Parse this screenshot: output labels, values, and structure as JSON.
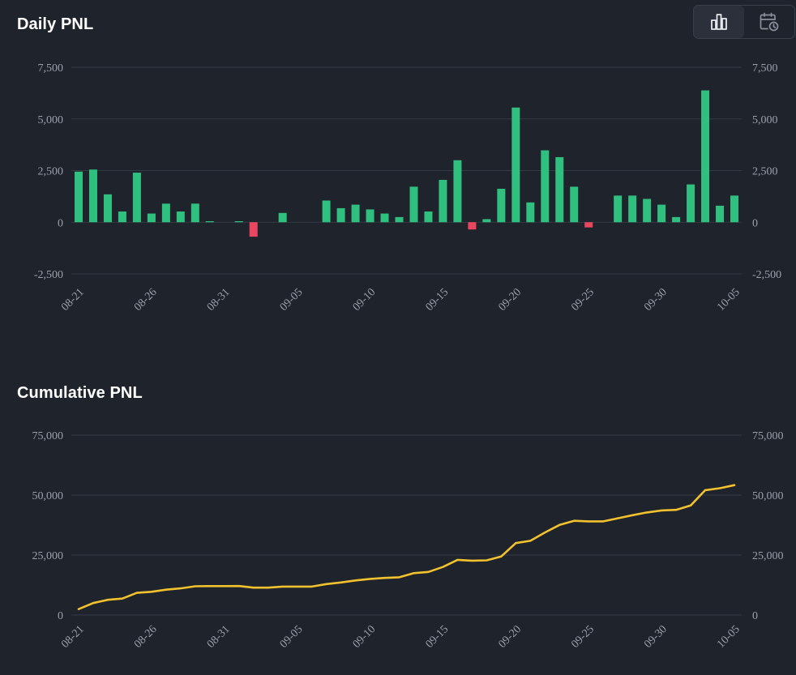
{
  "header": {
    "daily_title": "Daily PNL",
    "cumulative_title": "Cumulative PNL",
    "toggle_bar_icon": "bar-chart-icon",
    "toggle_calendar_icon": "calendar-clock-icon"
  },
  "colors": {
    "background": "#1f232b",
    "grid": "#343a45",
    "positive": "#2fbf7f",
    "negative": "#e9475f",
    "line": "#f2c12e",
    "tick": "#9aa0ab"
  },
  "chart_data": [
    {
      "type": "bar",
      "title": "Daily PNL",
      "xlabel": "",
      "ylabel": "",
      "ylim": [
        -2500,
        7500
      ],
      "yticks": [
        "7,500",
        "5,000",
        "2,500",
        "0",
        "-2,500"
      ],
      "ytick_values": [
        7500,
        5000,
        2500,
        0,
        -2500
      ],
      "x_tick_labels": [
        "08-21",
        "08-26",
        "08-31",
        "09-05",
        "09-10",
        "09-15",
        "09-20",
        "09-25",
        "09-30",
        "10-05"
      ],
      "x_tick_indices": [
        0,
        5,
        10,
        15,
        20,
        25,
        30,
        35,
        40,
        45
      ],
      "categories": [
        "08-21",
        "08-22",
        "08-23",
        "08-24",
        "08-25",
        "08-26",
        "08-27",
        "08-28",
        "08-29",
        "08-30",
        "08-31",
        "09-01",
        "09-02",
        "09-03",
        "09-04",
        "09-05",
        "09-06",
        "09-07",
        "09-08",
        "09-09",
        "09-10",
        "09-11",
        "09-12",
        "09-13",
        "09-14",
        "09-15",
        "09-16",
        "09-17",
        "09-18",
        "09-19",
        "09-20",
        "09-21",
        "09-22",
        "09-23",
        "09-24",
        "09-25",
        "09-26",
        "09-27",
        "09-28",
        "09-29",
        "09-30",
        "10-01",
        "10-02",
        "10-03",
        "10-04",
        "10-05"
      ],
      "values": [
        2450,
        2550,
        1350,
        520,
        2400,
        420,
        900,
        520,
        900,
        50,
        0,
        50,
        -700,
        0,
        450,
        0,
        0,
        1050,
        680,
        850,
        620,
        420,
        250,
        1720,
        520,
        2050,
        3000,
        -350,
        150,
        1620,
        5550,
        960,
        3480,
        3150,
        1720,
        -250,
        0,
        1290,
        1290,
        1130,
        850,
        250,
        1830,
        6380,
        800,
        1290
      ],
      "grid": true
    },
    {
      "type": "line",
      "title": "Cumulative PNL",
      "xlabel": "",
      "ylabel": "",
      "ylim": [
        0,
        75000
      ],
      "yticks": [
        "75,000",
        "50,000",
        "25,000",
        "0"
      ],
      "ytick_values": [
        75000,
        50000,
        25000,
        0
      ],
      "x_tick_labels": [
        "08-21",
        "08-26",
        "08-31",
        "09-05",
        "09-10",
        "09-15",
        "09-20",
        "09-25",
        "09-30",
        "10-05"
      ],
      "x_tick_indices": [
        0,
        5,
        10,
        15,
        20,
        25,
        30,
        35,
        40,
        45
      ],
      "values": [
        2450,
        5000,
        6350,
        6870,
        9270,
        9690,
        10590,
        11110,
        12010,
        12060,
        12060,
        12110,
        11410,
        11410,
        11860,
        11860,
        11860,
        12910,
        13590,
        14440,
        15060,
        15480,
        15730,
        17450,
        17970,
        20020,
        23020,
        22670,
        22820,
        24440,
        29990,
        30950,
        34430,
        37580,
        39300,
        39050,
        39050,
        40340,
        41630,
        42760,
        43610,
        43860,
        45690,
        52070,
        52870,
        54160
      ],
      "grid": true
    }
  ]
}
